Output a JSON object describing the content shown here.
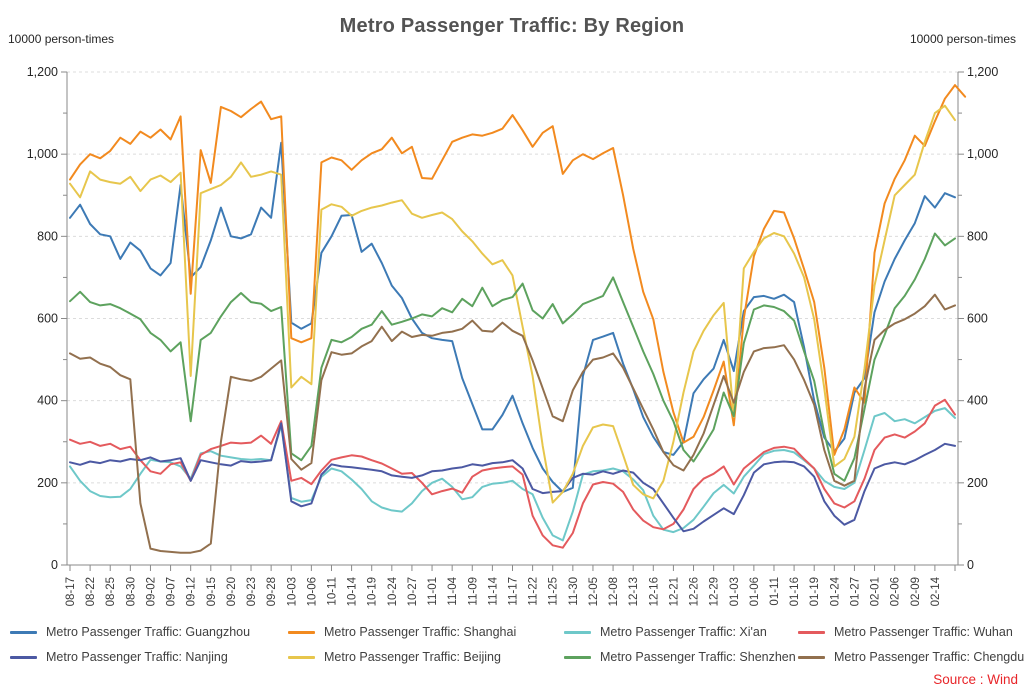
{
  "source": {
    "label": "Source : Wind",
    "color": "#e8262a"
  },
  "chart_data": {
    "type": "line",
    "title": "Metro Passenger Traffic: By Region",
    "unit_left": "10000 person-times",
    "unit_right": "10000 person-times",
    "xlabel": "",
    "ylabel": "10000 person-times",
    "ylim": [
      0,
      1200
    ],
    "yticks": [
      0,
      200,
      400,
      600,
      800,
      1000,
      1200
    ],
    "ytick_labels": [
      "0",
      "200",
      "400",
      "600",
      "800",
      "1,000",
      "1,200"
    ],
    "y_minor_step": 100,
    "grid": "horizontal-dashed",
    "legend_position": "bottom",
    "dual_axis": true,
    "x_tick_labels": [
      "08-17",
      "08-22",
      "08-25",
      "08-30",
      "09-02",
      "09-07",
      "09-12",
      "09-15",
      "09-20",
      "09-23",
      "09-28",
      "10-03",
      "10-06",
      "10-11",
      "10-14",
      "10-19",
      "10-24",
      "10-27",
      "11-01",
      "11-04",
      "11-09",
      "11-14",
      "11-17",
      "11-22",
      "11-25",
      "11-30",
      "12-05",
      "12-08",
      "12-13",
      "12-16",
      "12-21",
      "12-26",
      "12-29",
      "01-03",
      "01-06",
      "01-11",
      "01-16",
      "01-19",
      "01-24",
      "01-27",
      "02-01",
      "02-06",
      "02-09",
      "02-14"
    ],
    "points_per_series": 89,
    "tick_every_points": 2,
    "series": [
      {
        "slug": "guangzhou",
        "label": "Metro Passenger Traffic: Guangzhou",
        "color": "#3d7ab5",
        "values": [
          845,
          877,
          830,
          805,
          800,
          745,
          785,
          765,
          722,
          705,
          735,
          925,
          700,
          725,
          790,
          870,
          800,
          795,
          805,
          870,
          845,
          1028,
          590,
          575,
          588,
          760,
          800,
          850,
          852,
          762,
          782,
          735,
          680,
          650,
          600,
          565,
          552,
          548,
          545,
          455,
          392,
          330,
          330,
          365,
          412,
          345,
          285,
          235,
          202,
          178,
          188,
          460,
          548,
          556,
          565,
          490,
          428,
          360,
          312,
          275,
          268,
          300,
          418,
          452,
          478,
          548,
          472,
          618,
          652,
          655,
          648,
          658,
          640,
          530,
          400,
          310,
          276,
          308,
          420,
          455,
          615,
          690,
          745,
          790,
          832,
          898,
          870,
          905,
          895
        ]
      },
      {
        "slug": "shanghai",
        "label": "Metro Passenger Traffic: Shanghai",
        "color": "#f28a1f",
        "values": [
          938,
          975,
          1000,
          990,
          1008,
          1040,
          1025,
          1055,
          1040,
          1060,
          1036,
          1092,
          660,
          1010,
          930,
          1115,
          1105,
          1090,
          1110,
          1128,
          1085,
          1092,
          552,
          542,
          552,
          980,
          992,
          985,
          962,
          985,
          1002,
          1012,
          1040,
          1002,
          1018,
          942,
          940,
          985,
          1030,
          1040,
          1048,
          1045,
          1052,
          1062,
          1095,
          1058,
          1018,
          1052,
          1068,
          952,
          985,
          1000,
          988,
          1002,
          1015,
          900,
          770,
          665,
          598,
          470,
          372,
          298,
          312,
          360,
          425,
          495,
          340,
          600,
          752,
          818,
          862,
          858,
          795,
          720,
          640,
          480,
          268,
          330,
          432,
          395,
          760,
          880,
          940,
          985,
          1045,
          1020,
          1080,
          1135,
          1168,
          1140
        ]
      },
      {
        "slug": "xian",
        "label": "Metro Passenger Traffic: Xi'an",
        "color": "#6ec8c9",
        "values": [
          240,
          205,
          180,
          168,
          165,
          166,
          185,
          222,
          256,
          252,
          250,
          240,
          210,
          272,
          277,
          266,
          262,
          258,
          256,
          258,
          255,
          340,
          163,
          154,
          158,
          215,
          235,
          228,
          208,
          185,
          155,
          140,
          133,
          130,
          150,
          180,
          200,
          210,
          190,
          160,
          165,
          190,
          198,
          200,
          205,
          185,
          172,
          115,
          72,
          60,
          130,
          220,
          228,
          230,
          235,
          228,
          208,
          182,
          120,
          86,
          80,
          90,
          110,
          142,
          175,
          195,
          174,
          215,
          242,
          270,
          278,
          280,
          274,
          255,
          235,
          205,
          190,
          185,
          200,
          280,
          362,
          370,
          350,
          355,
          345,
          360,
          375,
          382,
          358
        ]
      },
      {
        "slug": "wuhan",
        "label": "Metro Passenger Traffic: Wuhan",
        "color": "#e45a5d",
        "values": [
          305,
          295,
          300,
          290,
          295,
          282,
          288,
          255,
          228,
          222,
          245,
          250,
          205,
          268,
          282,
          290,
          298,
          296,
          298,
          315,
          295,
          350,
          205,
          212,
          197,
          230,
          256,
          262,
          267,
          264,
          255,
          247,
          235,
          222,
          224,
          200,
          172,
          180,
          186,
          176,
          215,
          230,
          235,
          238,
          240,
          220,
          120,
          72,
          48,
          42,
          78,
          150,
          196,
          202,
          198,
          178,
          135,
          108,
          92,
          87,
          100,
          135,
          185,
          210,
          222,
          240,
          196,
          235,
          255,
          275,
          285,
          288,
          283,
          258,
          235,
          185,
          150,
          140,
          155,
          210,
          280,
          310,
          318,
          310,
          325,
          345,
          388,
          402,
          366
        ]
      },
      {
        "slug": "nanjing",
        "label": "Metro Passenger Traffic: Nanjing",
        "color": "#4c59a3",
        "values": [
          250,
          244,
          252,
          248,
          255,
          252,
          258,
          255,
          262,
          252,
          255,
          260,
          205,
          255,
          250,
          245,
          242,
          253,
          250,
          252,
          255,
          345,
          155,
          143,
          150,
          220,
          245,
          240,
          238,
          235,
          232,
          228,
          218,
          215,
          212,
          218,
          228,
          230,
          235,
          238,
          245,
          242,
          248,
          250,
          255,
          235,
          185,
          175,
          178,
          180,
          212,
          222,
          220,
          228,
          222,
          230,
          225,
          200,
          185,
          150,
          115,
          82,
          88,
          106,
          122,
          138,
          124,
          170,
          225,
          245,
          250,
          252,
          250,
          240,
          215,
          155,
          120,
          98,
          110,
          180,
          235,
          245,
          250,
          245,
          255,
          268,
          280,
          295,
          290
        ]
      },
      {
        "slug": "beijing",
        "label": "Metro Passenger Traffic: Beijing",
        "color": "#e7c64c",
        "values": [
          928,
          895,
          958,
          938,
          932,
          928,
          945,
          910,
          938,
          948,
          932,
          955,
          460,
          905,
          915,
          925,
          945,
          980,
          945,
          950,
          958,
          950,
          432,
          458,
          440,
          865,
          878,
          872,
          850,
          862,
          870,
          875,
          882,
          888,
          855,
          845,
          852,
          858,
          842,
          812,
          788,
          758,
          732,
          742,
          705,
          580,
          460,
          290,
          152,
          178,
          222,
          290,
          335,
          342,
          338,
          268,
          195,
          172,
          162,
          205,
          300,
          420,
          520,
          570,
          608,
          638,
          360,
          722,
          762,
          795,
          808,
          800,
          758,
          700,
          598,
          430,
          240,
          258,
          312,
          478,
          680,
          790,
          900,
          925,
          950,
          1030,
          1100,
          1118,
          1083
        ]
      },
      {
        "slug": "shenzhen",
        "label": "Metro Passenger Traffic: Shenzhen",
        "color": "#5da25e",
        "values": [
          642,
          665,
          640,
          632,
          635,
          625,
          612,
          598,
          565,
          548,
          520,
          542,
          350,
          548,
          565,
          605,
          640,
          662,
          640,
          636,
          618,
          628,
          272,
          255,
          290,
          480,
          548,
          542,
          555,
          575,
          585,
          618,
          585,
          592,
          600,
          610,
          605,
          625,
          615,
          648,
          630,
          675,
          630,
          645,
          652,
          685,
          620,
          600,
          635,
          588,
          610,
          635,
          645,
          655,
          700,
          640,
          580,
          520,
          465,
          400,
          350,
          280,
          252,
          290,
          330,
          420,
          362,
          540,
          622,
          632,
          628,
          618,
          595,
          520,
          448,
          320,
          222,
          205,
          260,
          380,
          500,
          560,
          625,
          655,
          695,
          745,
          807,
          778,
          795
        ]
      },
      {
        "slug": "chengdu",
        "label": "Metro Passenger Traffic: Chengdu",
        "color": "#92704e",
        "values": [
          515,
          502,
          505,
          490,
          482,
          462,
          452,
          150,
          40,
          34,
          32,
          30,
          30,
          35,
          52,
          300,
          458,
          452,
          448,
          458,
          478,
          498,
          258,
          232,
          248,
          450,
          518,
          512,
          515,
          532,
          545,
          580,
          545,
          568,
          555,
          560,
          558,
          565,
          568,
          575,
          595,
          570,
          568,
          590,
          570,
          558,
          498,
          430,
          362,
          350,
          425,
          470,
          500,
          505,
          515,
          480,
          430,
          380,
          330,
          275,
          243,
          230,
          268,
          320,
          390,
          460,
          395,
          470,
          520,
          528,
          530,
          535,
          500,
          450,
          390,
          280,
          205,
          193,
          205,
          430,
          548,
          572,
          588,
          598,
          612,
          630,
          658,
          622,
          632
        ]
      }
    ]
  }
}
